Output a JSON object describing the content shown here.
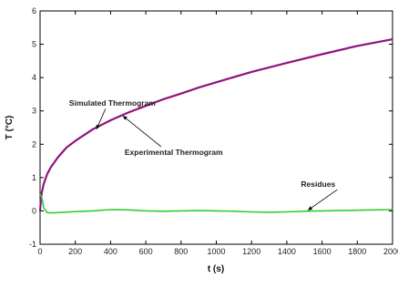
{
  "chart_data": {
    "type": "line",
    "xlabel": "t (s)",
    "ylabel": "T (°C)",
    "xlim": [
      0,
      2000
    ],
    "ylim": [
      -1,
      6
    ],
    "xticks": [
      0,
      200,
      400,
      600,
      800,
      1000,
      1200,
      1400,
      1600,
      1800,
      2000
    ],
    "yticks": [
      -1,
      0,
      1,
      2,
      3,
      4,
      5,
      6
    ],
    "grid": false,
    "legend": "none",
    "series": [
      {
        "name": "Simulated Thermogram",
        "color": "#cc0066",
        "x": [
          0,
          5,
          10,
          20,
          40,
          60,
          100,
          150,
          200,
          300,
          400,
          500,
          600,
          700,
          800,
          900,
          1000,
          1200,
          1400,
          1600,
          1800,
          2000
        ],
        "y": [
          0,
          0.35,
          0.55,
          0.8,
          1.1,
          1.3,
          1.6,
          1.9,
          2.1,
          2.45,
          2.72,
          2.95,
          3.15,
          3.35,
          3.52,
          3.7,
          3.86,
          4.17,
          4.44,
          4.7,
          4.95,
          5.15
        ]
      },
      {
        "name": "Experimental Thermogram",
        "color": "#4b2aa0",
        "x": [
          0,
          5,
          10,
          20,
          40,
          60,
          100,
          150,
          200,
          300,
          400,
          500,
          600,
          700,
          800,
          900,
          1000,
          1200,
          1400,
          1600,
          1800,
          2000
        ],
        "y": [
          0,
          0.33,
          0.53,
          0.79,
          1.09,
          1.3,
          1.6,
          1.9,
          2.1,
          2.46,
          2.73,
          2.96,
          3.16,
          3.36,
          3.53,
          3.71,
          3.87,
          4.18,
          4.45,
          4.71,
          4.96,
          5.16
        ]
      },
      {
        "name": "Residues",
        "color": "#33cc33",
        "x": [
          0,
          10,
          20,
          40,
          60,
          100,
          200,
          300,
          400,
          500,
          600,
          700,
          800,
          900,
          1000,
          1100,
          1200,
          1300,
          1400,
          1500,
          1600,
          1700,
          1800,
          1900,
          2000
        ],
        "y": [
          0.5,
          0.4,
          0.1,
          -0.05,
          -0.06,
          -0.05,
          -0.02,
          0.0,
          0.04,
          0.03,
          0.0,
          -0.01,
          0.0,
          0.01,
          0.0,
          -0.01,
          -0.03,
          -0.04,
          -0.03,
          -0.01,
          0.0,
          0.01,
          0.02,
          0.03,
          0.04
        ]
      }
    ],
    "annotations": [
      {
        "text": "Simulated Thermogram",
        "x": 165,
        "y": 3.15,
        "arrow_to": [
          320,
          2.45
        ]
      },
      {
        "text": "Experimental Thermogram",
        "x": 480,
        "y": 1.68,
        "arrow_to": [
          470,
          2.85
        ]
      },
      {
        "text": "Residues",
        "x": 1480,
        "y": 0.72,
        "arrow_to": [
          1520,
          0.02
        ]
      }
    ]
  }
}
